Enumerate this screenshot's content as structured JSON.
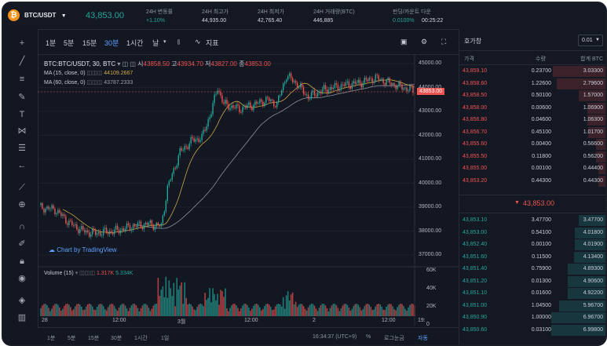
{
  "header": {
    "symbol": "BTC/USDT",
    "last_price": "43,853.00",
    "stats": [
      {
        "label": "24H 변동률",
        "value": "+1.10%"
      },
      {
        "label": "24H 최고가",
        "value": "44,935.00"
      },
      {
        "label": "24H 최저가",
        "value": "42,765.40"
      },
      {
        "label": "24H 거래량(BTC)",
        "value": "446,885"
      },
      {
        "label": "펀딩/카운트 다운",
        "value": "0.0100%",
        "extra": "00:25:22"
      }
    ]
  },
  "chart_toolbar": {
    "intervals": [
      "1분",
      "5분",
      "15분",
      "30분",
      "1시간",
      "날"
    ],
    "active_interval": "30분",
    "indicator_label": "지표"
  },
  "chart_legend": {
    "title": "BTC:BTC/USDT, 30, BTC",
    "ohlc": [
      {
        "k": "시",
        "v": "43858.50"
      },
      {
        "k": "고",
        "v": "43934.70"
      },
      {
        "k": "저",
        "v": "43827.00"
      },
      {
        "k": "종",
        "v": "43853.00"
      }
    ],
    "ma15_label": "MA (15, close, 0)",
    "ma15_value": "44109.2667",
    "ma60_label": "MA (60, close, 0)",
    "ma60_value": "43787.2333",
    "volume_label": "Volume (15)",
    "volume_v1": "1.317K",
    "volume_v2": "5.334K",
    "watermark": "Chart by TradingView"
  },
  "y_axis_price": [
    "45000.00",
    "44000.00",
    "43000.00",
    "42000.00",
    "41000.00",
    "40000.00",
    "39000.00",
    "38000.00",
    "37000.00"
  ],
  "current_price_tag": "43853.00",
  "y_axis_volume": [
    "60K",
    "40K",
    "20K",
    "0"
  ],
  "x_axis": [
    "28",
    "12:00",
    "3월",
    "12:00",
    "2",
    "12:00",
    "19:"
  ],
  "bottom_bar": {
    "ranges": [
      "1분",
      "5분",
      "15분",
      "30분",
      "1시간",
      "1일"
    ],
    "time": "16:34:37 (UTC+9)",
    "pct": "%",
    "log": "로그눈금",
    "auto": "자동"
  },
  "orderbook": {
    "title": "호가창",
    "select": "0.01",
    "headers": {
      "price": "가격",
      "qty": "수량",
      "sum": "합계 BTC"
    },
    "asks": [
      {
        "price": "43,859.10",
        "qty": "0.23700",
        "sum": "3.03300"
      },
      {
        "price": "43,858.60",
        "qty": "1.22600",
        "sum": "2.79600"
      },
      {
        "price": "43,858.50",
        "qty": "0.50100",
        "sum": "1.57000"
      },
      {
        "price": "43,858.00",
        "qty": "0.00600",
        "sum": "1.06900"
      },
      {
        "price": "43,856.80",
        "qty": "0.04600",
        "sum": "1.06300"
      },
      {
        "price": "43,856.70",
        "qty": "0.45100",
        "sum": "1.01700"
      },
      {
        "price": "43,855.60",
        "qty": "0.00400",
        "sum": "0.56600"
      },
      {
        "price": "43,855.50",
        "qty": "0.11800",
        "sum": "0.56200"
      },
      {
        "price": "43,855.00",
        "qty": "0.00100",
        "sum": "0.44400"
      },
      {
        "price": "43,853.20",
        "qty": "0.44300",
        "sum": "0.44300"
      }
    ],
    "mid_price": "43,853.00",
    "bids": [
      {
        "price": "43,853.10",
        "qty": "3.47700",
        "sum": "3.47700"
      },
      {
        "price": "43,853.00",
        "qty": "0.54100",
        "sum": "4.01800"
      },
      {
        "price": "43,852.40",
        "qty": "0.00100",
        "sum": "4.01900"
      },
      {
        "price": "43,851.60",
        "qty": "0.11500",
        "sum": "4.13400"
      },
      {
        "price": "43,851.40",
        "qty": "0.75900",
        "sum": "4.89300"
      },
      {
        "price": "43,851.20",
        "qty": "0.01300",
        "sum": "4.90600"
      },
      {
        "price": "43,851.10",
        "qty": "0.01600",
        "sum": "4.92200"
      },
      {
        "price": "43,851.00",
        "qty": "1.04500",
        "sum": "5.96700"
      },
      {
        "price": "43,850.90",
        "qty": "1.00000",
        "sum": "6.96700"
      },
      {
        "price": "43,850.60",
        "qty": "0.03100",
        "sum": "6.99800"
      }
    ]
  },
  "colors": {
    "up": "#26a69a",
    "down": "#ef5350",
    "accent": "#5fa2ff",
    "bg": "#131722"
  }
}
